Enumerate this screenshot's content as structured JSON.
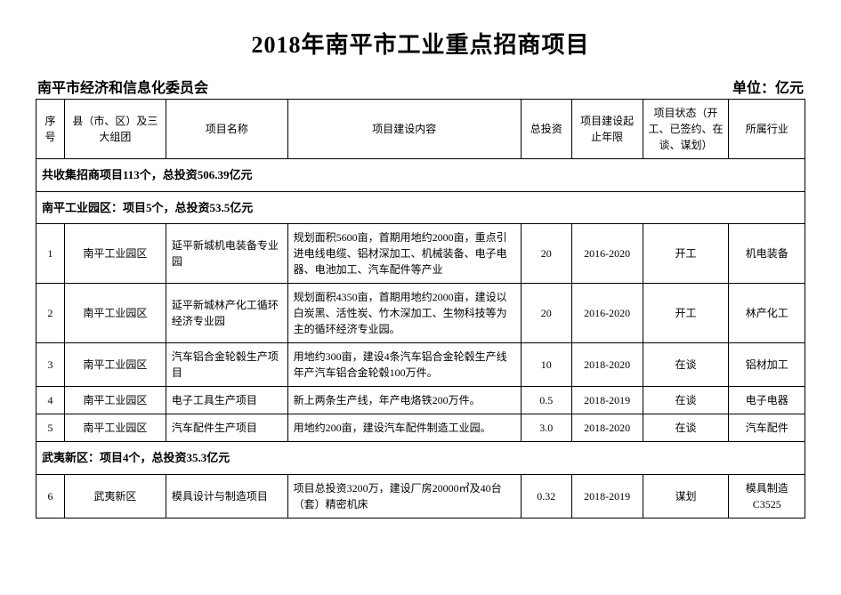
{
  "title": "2018年南平市工业重点招商项目",
  "subheader": {
    "left": "南平市经济和信息化委员会",
    "right": "单位：亿元"
  },
  "columns": {
    "seq": "序号",
    "region": "县（市、区）及三大组团",
    "name": "项目名称",
    "content": "项目建设内容",
    "invest": "总投资",
    "period": "项目建设起止年限",
    "status": "项目状态（开工、已签约、在谈、谋划）",
    "industry": "所属行业"
  },
  "summary": "共收集招商项目113个，总投资506.39亿元",
  "section1": {
    "header": "南平工业园区：项目5个，总投资53.5亿元",
    "rows": [
      {
        "seq": "1",
        "region": "南平工业园区",
        "name": "延平新城机电装备专业园",
        "content": "规划面积5600亩，首期用地约2000亩，重点引进电线电缆、铝材深加工、机械装备、电子电器、电池加工、汽车配件等产业",
        "invest": "20",
        "period": "2016-2020",
        "status": "开工",
        "industry": "机电装备"
      },
      {
        "seq": "2",
        "region": "南平工业园区",
        "name": "延平新城林产化工循环经济专业园",
        "content": "规划面积4350亩，首期用地约2000亩，建设以白炭黑、活性炭、竹木深加工、生物科技等为主的循环经济专业园。",
        "invest": "20",
        "period": "2016-2020",
        "status": "开工",
        "industry": "林产化工"
      },
      {
        "seq": "3",
        "region": "南平工业园区",
        "name": "汽车铝合金轮毂生产项目",
        "content": "用地约300亩，建设4条汽车铝合金轮毂生产线年产汽车铝合金轮毂100万件。",
        "invest": "10",
        "period": "2018-2020",
        "status": "在谈",
        "industry": "铝材加工"
      },
      {
        "seq": "4",
        "region": "南平工业园区",
        "name": "电子工具生产项目",
        "content": "新上两条生产线，年产电烙铁200万件。",
        "invest": "0.5",
        "period": "2018-2019",
        "status": "在谈",
        "industry": "电子电器"
      },
      {
        "seq": "5",
        "region": "南平工业园区",
        "name": "汽车配件生产项目",
        "content": "用地约200亩，建设汽车配件制造工业园。",
        "invest": "3.0",
        "period": "2018-2020",
        "status": "在谈",
        "industry": "汽车配件"
      }
    ]
  },
  "section2": {
    "header": "武夷新区：项目4个，总投资35.3亿元",
    "rows": [
      {
        "seq": "6",
        "region": "武夷新区",
        "name": "模具设计与制造项目",
        "content": "项目总投资3200万，建设厂房20000㎡及40台（套）精密机床",
        "invest": "0.32",
        "period": "2018-2019",
        "status": "谋划",
        "industry": "模具制造C3525"
      }
    ]
  }
}
